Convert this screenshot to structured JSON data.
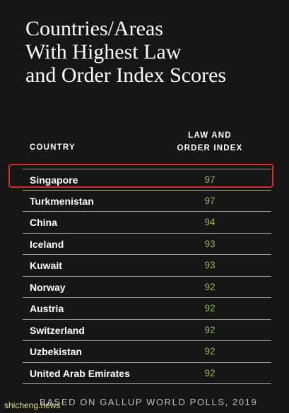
{
  "title_lines": [
    "Countries/Areas",
    "With Highest Law",
    "and Order Index Scores"
  ],
  "chart_data": {
    "type": "table",
    "title": "Countries/Areas With Highest Law and Order Index Scores",
    "columns": [
      "COUNTRY",
      "LAW AND ORDER INDEX"
    ],
    "column_index_lines": [
      "LAW AND",
      "ORDER INDEX"
    ],
    "categories": [
      "Singapore",
      "Turkmenistan",
      "China",
      "Iceland",
      "Kuwait",
      "Norway",
      "Austria",
      "Switzerland",
      "Uzbekistan",
      "United Arab Emirates"
    ],
    "values": [
      97,
      97,
      94,
      93,
      93,
      92,
      92,
      92,
      92,
      92
    ],
    "highlighted": "Singapore"
  },
  "footer": "BASED ON GALLUP WORLD POLLS, 2019",
  "watermark": "shicheng.news",
  "colors": {
    "background": "#161616",
    "score": "#8fbf4f",
    "highlight": "#d72b2b"
  }
}
